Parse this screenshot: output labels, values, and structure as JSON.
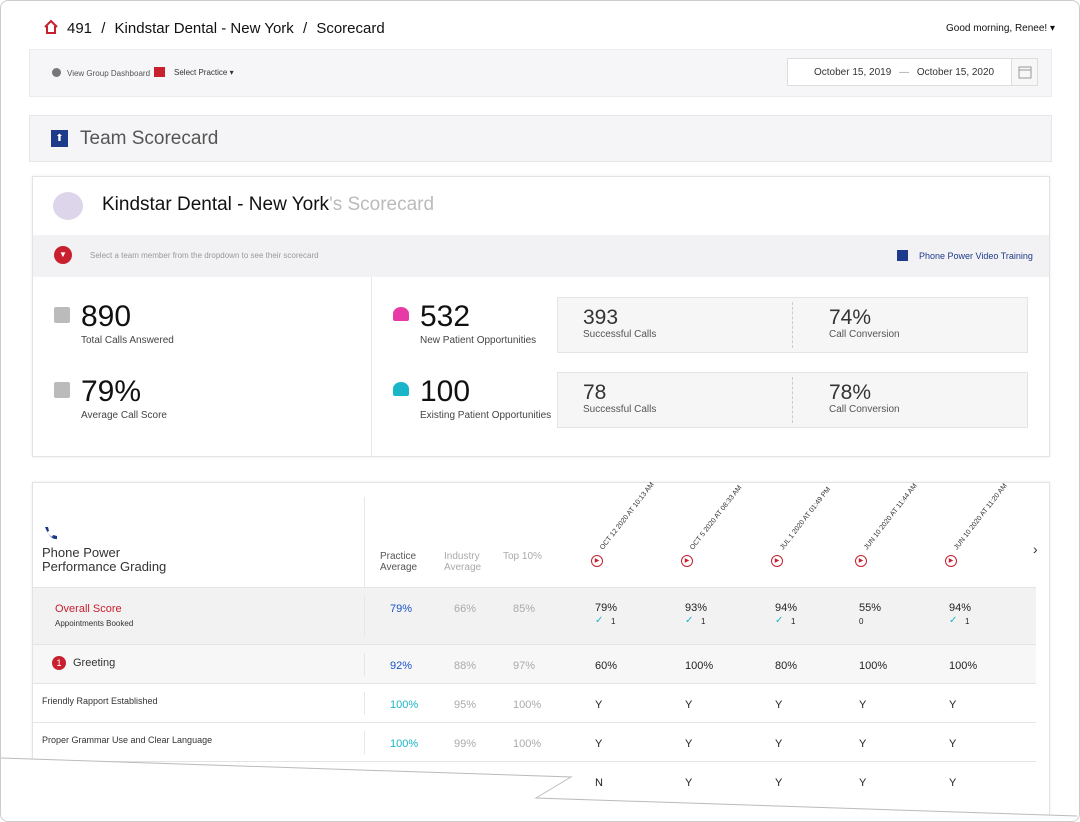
{
  "header": {
    "breadcrumb": [
      "491",
      "Kindstar Dental - New York",
      "Scorecard"
    ],
    "separator": "/",
    "greeting": "Good morning, Renee!"
  },
  "toolbar": {
    "group_dashboard": "View Group Dashboard",
    "select_practice": "Select Practice",
    "date_from": "October 15, 2019",
    "date_separator": "—",
    "date_to": "October 15, 2020"
  },
  "section": {
    "title": "Team Scorecard"
  },
  "scorecard": {
    "practice": "Kindstar Dental - New York",
    "suffix": "'s Scorecard",
    "hint": "Select a team member from the dropdown to see their scorecard",
    "training_link": "Phone Power Video Training",
    "summary": [
      {
        "value": "890",
        "label": "Total Calls Answered"
      },
      {
        "value": "79%",
        "label": "Average Call Score"
      }
    ],
    "opportunities": [
      {
        "value": "532",
        "label": "New Patient Opportunities",
        "successful_calls": "393",
        "successful_label": "Successful Calls",
        "conversion": "74%",
        "conversion_label": "Call Conversion"
      },
      {
        "value": "100",
        "label": "Existing Patient Opportunities",
        "successful_calls": "78",
        "successful_label": "Successful Calls",
        "conversion": "78%",
        "conversion_label": "Call Conversion"
      }
    ]
  },
  "grading": {
    "title": "Phone Power Performance Grading",
    "benchmarks": [
      "Practice Average",
      "Industry Average",
      "Top 10%"
    ],
    "calls": [
      "OCT 12 2020 AT 10:13 AM",
      "OCT 5 2020 AT 08:33 AM",
      "JUL 1 2020 AT 01:49 PM",
      "JUN 10 2020 AT 11:44 AM",
      "JUN 10 2020 AT 11:20 AM"
    ],
    "rows": [
      {
        "label": "Overall Score",
        "sublabel": "Appointments Booked",
        "benchmarks": [
          "79%",
          "66%",
          "85%"
        ],
        "calls": [
          "79%",
          "93%",
          "94%",
          "55%",
          "94%"
        ],
        "booked": [
          1,
          1,
          1,
          0,
          1
        ]
      },
      {
        "label": "Greeting",
        "badge": "1",
        "benchmarks": [
          "92%",
          "88%",
          "97%"
        ],
        "calls": [
          "60%",
          "100%",
          "80%",
          "100%",
          "100%"
        ]
      },
      {
        "label": "Friendly Rapport Established",
        "benchmarks": [
          "100%",
          "95%",
          "100%"
        ],
        "calls": [
          "Y",
          "Y",
          "Y",
          "Y",
          "Y"
        ]
      },
      {
        "label": "Proper Grammar Use and Clear Language",
        "benchmarks": [
          "100%",
          "99%",
          "100%"
        ],
        "calls": [
          "Y",
          "Y",
          "Y",
          "Y",
          "Y"
        ]
      },
      {
        "label": null,
        "benchmarks": [
          null,
          null,
          null
        ],
        "calls": [
          "N",
          "Y",
          "Y",
          "Y",
          "Y"
        ]
      }
    ]
  }
}
